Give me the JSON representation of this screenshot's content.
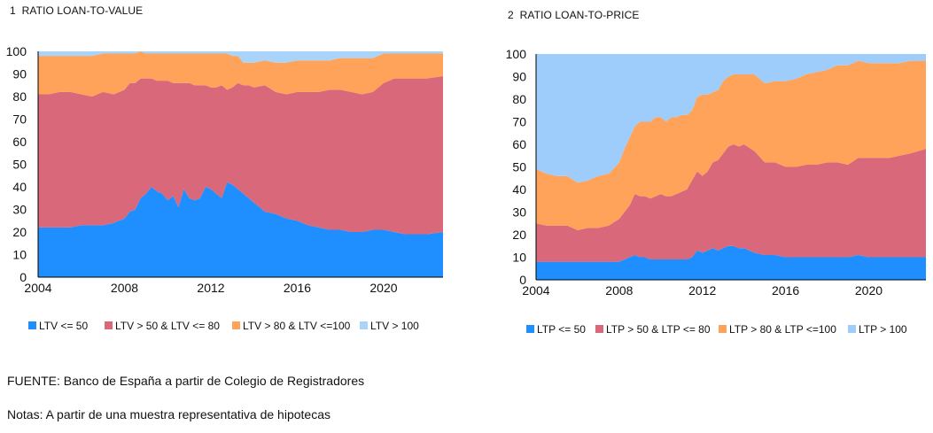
{
  "charts": [
    {
      "number": "1",
      "title": "RATIO LOAN-TO-VALUE",
      "chart_data": {
        "type": "area",
        "stacked": true,
        "title": "RATIO LOAN-TO-VALUE",
        "xlabel": "",
        "ylabel": "",
        "xlim": [
          2004,
          2022.75
        ],
        "ylim": [
          0,
          100
        ],
        "x_ticks": [
          2004,
          2008,
          2012,
          2016,
          2020
        ],
        "y_ticks": [
          0,
          10,
          20,
          30,
          40,
          50,
          60,
          70,
          80,
          90,
          100
        ],
        "grid": false,
        "legend_position": "bottom",
        "x": [
          2004.0,
          2004.5,
          2005.0,
          2005.5,
          2006.0,
          2006.5,
          2007.0,
          2007.5,
          2008.0,
          2008.25,
          2008.5,
          2008.75,
          2009.0,
          2009.25,
          2009.5,
          2009.75,
          2010.0,
          2010.25,
          2010.5,
          2010.75,
          2011.0,
          2011.25,
          2011.5,
          2011.75,
          2012.0,
          2012.25,
          2012.5,
          2012.75,
          2013.0,
          2013.25,
          2013.5,
          2013.75,
          2014.0,
          2014.5,
          2015.0,
          2015.5,
          2016.0,
          2016.5,
          2017.0,
          2017.5,
          2018.0,
          2018.5,
          2019.0,
          2019.5,
          2020.0,
          2020.5,
          2021.0,
          2021.5,
          2022.0,
          2022.75
        ],
        "series": [
          {
            "name": "LTV <= 50",
            "color": "#1f8fff",
            "values": [
              22,
              22,
              22,
              22,
              23,
              23,
              23,
              24,
              26,
              29,
              30,
              35,
              37,
              40,
              38,
              37,
              34,
              36,
              31,
              39,
              35,
              34,
              35,
              40,
              39,
              37,
              35,
              42,
              41,
              39,
              37,
              35,
              33,
              29,
              28,
              26,
              25,
              23,
              22,
              21,
              21,
              20,
              20,
              21,
              21,
              20,
              19,
              19,
              19,
              20
            ]
          },
          {
            "name": "LTV > 50 & LTV <= 80",
            "color": "#d9697a",
            "values": [
              59,
              59,
              60,
              60,
              58,
              57,
              59,
              57,
              57,
              57,
              56,
              53,
              51,
              48,
              49,
              50,
              53,
              50,
              55,
              47,
              51,
              51,
              50,
              45,
              45,
              47,
              50,
              41,
              43,
              47,
              48,
              50,
              51,
              56,
              54,
              55,
              57,
              59,
              60,
              62,
              62,
              62,
              61,
              61,
              65,
              68,
              69,
              69,
              69,
              69
            ]
          },
          {
            "name": "LTV > 80 & LTV <=100",
            "color": "#ffa35a",
            "values": [
              17,
              17,
              16,
              16,
              17,
              18,
              17,
              18,
              16,
              13,
              13,
              12,
              11,
              11,
              12,
              12,
              12,
              13,
              13,
              13,
              13,
              14,
              14,
              14,
              15,
              15,
              14,
              16,
              14,
              12,
              10,
              10,
              11,
              11,
              13,
              14,
              14,
              14,
              14,
              13,
              14,
              15,
              16,
              15,
              13,
              11,
              11,
              11,
              11,
              10
            ]
          },
          {
            "name": "LTV > 100",
            "color": "#a8d4fa",
            "values": [
              2,
              2,
              2,
              2,
              2,
              2,
              1,
              1,
              1,
              1,
              1,
              0,
              1,
              1,
              1,
              1,
              1,
              1,
              1,
              1,
              1,
              1,
              1,
              1,
              1,
              1,
              1,
              1,
              2,
              2,
              5,
              5,
              5,
              4,
              5,
              5,
              4,
              4,
              4,
              4,
              3,
              3,
              3,
              3,
              1,
              1,
              1,
              1,
              1,
              1
            ]
          }
        ]
      }
    },
    {
      "number": "2",
      "title": "RATIO LOAN-TO-PRICE",
      "chart_data": {
        "type": "area",
        "stacked": true,
        "title": "RATIO LOAN-TO-PRICE",
        "xlabel": "",
        "ylabel": "",
        "xlim": [
          2004,
          2022.75
        ],
        "ylim": [
          0,
          100
        ],
        "x_ticks": [
          2004,
          2008,
          2012,
          2016,
          2020
        ],
        "y_ticks": [
          0,
          10,
          20,
          30,
          40,
          50,
          60,
          70,
          80,
          90,
          100
        ],
        "grid": false,
        "legend_position": "bottom",
        "x": [
          2004.0,
          2004.5,
          2005.0,
          2005.5,
          2006.0,
          2006.5,
          2007.0,
          2007.5,
          2008.0,
          2008.25,
          2008.5,
          2008.75,
          2009.0,
          2009.25,
          2009.5,
          2009.75,
          2010.0,
          2010.25,
          2010.5,
          2010.75,
          2011.0,
          2011.25,
          2011.5,
          2011.75,
          2012.0,
          2012.25,
          2012.5,
          2012.75,
          2013.0,
          2013.25,
          2013.5,
          2013.75,
          2014.0,
          2014.5,
          2015.0,
          2015.5,
          2016.0,
          2016.5,
          2017.0,
          2017.5,
          2018.0,
          2018.5,
          2019.0,
          2019.5,
          2020.0,
          2020.5,
          2021.0,
          2021.5,
          2022.0,
          2022.75
        ],
        "series": [
          {
            "name": "LTP <= 50",
            "color": "#1f8fff",
            "values": [
              8,
              8,
              8,
              8,
              8,
              8,
              8,
              8,
              8,
              9,
              10,
              11,
              10,
              10,
              9,
              9,
              9,
              9,
              9,
              9,
              9,
              9,
              10,
              13,
              12,
              13,
              14,
              13,
              14,
              15,
              15,
              14,
              14,
              12,
              11,
              11,
              10,
              10,
              10,
              10,
              10,
              10,
              10,
              11,
              10,
              10,
              10,
              10,
              10,
              10
            ]
          },
          {
            "name": "LTP > 50 & LTP <= 80",
            "color": "#d9697a",
            "values": [
              17,
              16,
              16,
              16,
              14,
              15,
              15,
              16,
              19,
              21,
              23,
              27,
              27,
              27,
              27,
              28,
              29,
              28,
              28,
              29,
              30,
              31,
              34,
              35,
              34,
              35,
              38,
              40,
              42,
              44,
              45,
              45,
              46,
              45,
              41,
              41,
              40,
              40,
              41,
              41,
              42,
              42,
              41,
              43,
              44,
              44,
              44,
              45,
              46,
              48
            ]
          },
          {
            "name": "LTP > 80 & LTP <=100",
            "color": "#ffa35a",
            "values": [
              24,
              23,
              22,
              22,
              21,
              21,
              23,
              23,
              25,
              28,
              30,
              30,
              33,
              33,
              34,
              35,
              34,
              33,
              35,
              34,
              34,
              33,
              31,
              33,
              36,
              34,
              31,
              31,
              32,
              31,
              31,
              32,
              31,
              34,
              35,
              36,
              38,
              39,
              40,
              41,
              41,
              43,
              44,
              43,
              42,
              42,
              42,
              41,
              41,
              39
            ]
          },
          {
            "name": "LTP > 100",
            "color": "#9ecdfb",
            "values": [
              51,
              53,
              54,
              54,
              57,
              56,
              54,
              53,
              48,
              42,
              37,
              32,
              30,
              30,
              30,
              28,
              28,
              30,
              28,
              28,
              27,
              27,
              25,
              19,
              18,
              18,
              17,
              16,
              12,
              10,
              9,
              9,
              9,
              9,
              13,
              12,
              12,
              11,
              9,
              8,
              7,
              5,
              5,
              3,
              4,
              4,
              4,
              4,
              3,
              3
            ]
          }
        ]
      }
    }
  ],
  "footer": {
    "source": "FUENTE: Banco de España a partir de Colegio de Registradores",
    "notes": "Notas: A partir de una muestra representativa de hipotecas"
  }
}
